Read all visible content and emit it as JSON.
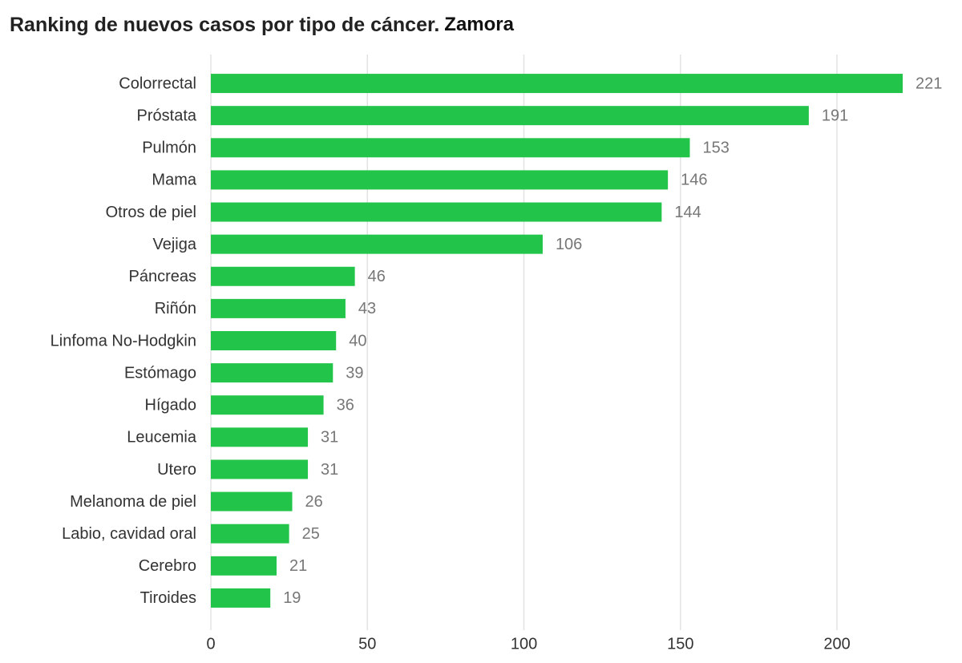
{
  "chart_data": {
    "type": "bar",
    "orientation": "horizontal",
    "title": "Ranking de nuevos casos por tipo de cáncer.",
    "subtitle": "Zamora",
    "categories": [
      "Colorrectal",
      "Próstata",
      "Pulmón",
      "Mama",
      "Otros de piel",
      "Vejiga",
      "Páncreas",
      "Riñón",
      "Linfoma No-Hodgkin",
      "Estómago",
      "Hígado",
      "Leucemia",
      "Utero",
      "Melanoma de piel",
      "Labio, cavidad oral",
      "Cerebro",
      "Tiroides"
    ],
    "values": [
      221,
      191,
      153,
      146,
      144,
      106,
      46,
      43,
      40,
      39,
      36,
      31,
      31,
      26,
      25,
      21,
      19
    ],
    "color": "#22c44a",
    "xlim": [
      0,
      232
    ],
    "xticks": [
      0,
      50,
      100,
      150,
      200
    ],
    "grid": true
  }
}
